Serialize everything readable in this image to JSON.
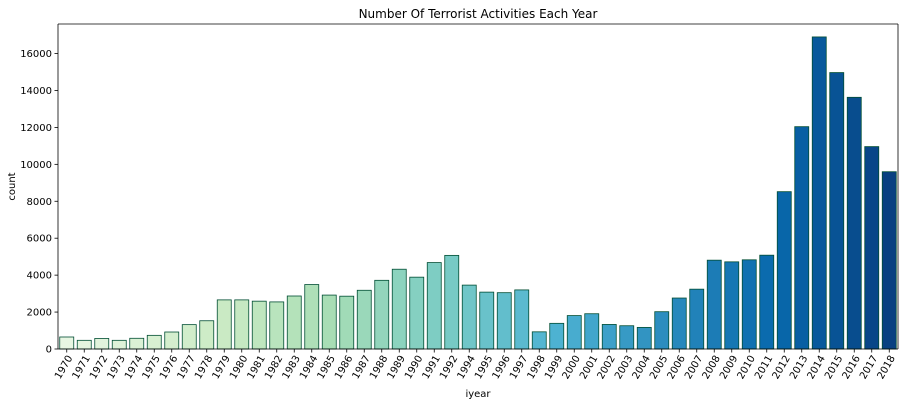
{
  "chart_data": {
    "type": "bar",
    "title": "Number Of Terrorist Activities Each Year",
    "xlabel": "iyear",
    "ylabel": "count",
    "ylim": [
      0,
      17600
    ],
    "yticks": [
      0,
      2000,
      4000,
      6000,
      8000,
      10000,
      12000,
      14000,
      16000
    ],
    "grid": false,
    "palette": "GnBu",
    "edge_color": "#004d33",
    "categories": [
      "1970",
      "1971",
      "1972",
      "1973",
      "1974",
      "1975",
      "1976",
      "1977",
      "1978",
      "1979",
      "1980",
      "1981",
      "1982",
      "1983",
      "1984",
      "1985",
      "1986",
      "1987",
      "1988",
      "1989",
      "1990",
      "1991",
      "1992",
      "1994",
      "1995",
      "1996",
      "1997",
      "1998",
      "1999",
      "2000",
      "2001",
      "2002",
      "2003",
      "2004",
      "2005",
      "2006",
      "2007",
      "2008",
      "2009",
      "2010",
      "2011",
      "2012",
      "2013",
      "2014",
      "2015",
      "2016",
      "2017",
      "2018"
    ],
    "values": [
      650,
      470,
      570,
      470,
      580,
      740,
      920,
      1320,
      1530,
      2660,
      2660,
      2590,
      2550,
      2870,
      3490,
      2920,
      2860,
      3180,
      3720,
      4320,
      3890,
      4680,
      5070,
      3460,
      3080,
      3050,
      3200,
      930,
      1390,
      1810,
      1910,
      1330,
      1260,
      1170,
      2020,
      2760,
      3240,
      4810,
      4720,
      4830,
      5080,
      8520,
      12040,
      16900,
      14970,
      13630,
      10960,
      9600
    ]
  }
}
